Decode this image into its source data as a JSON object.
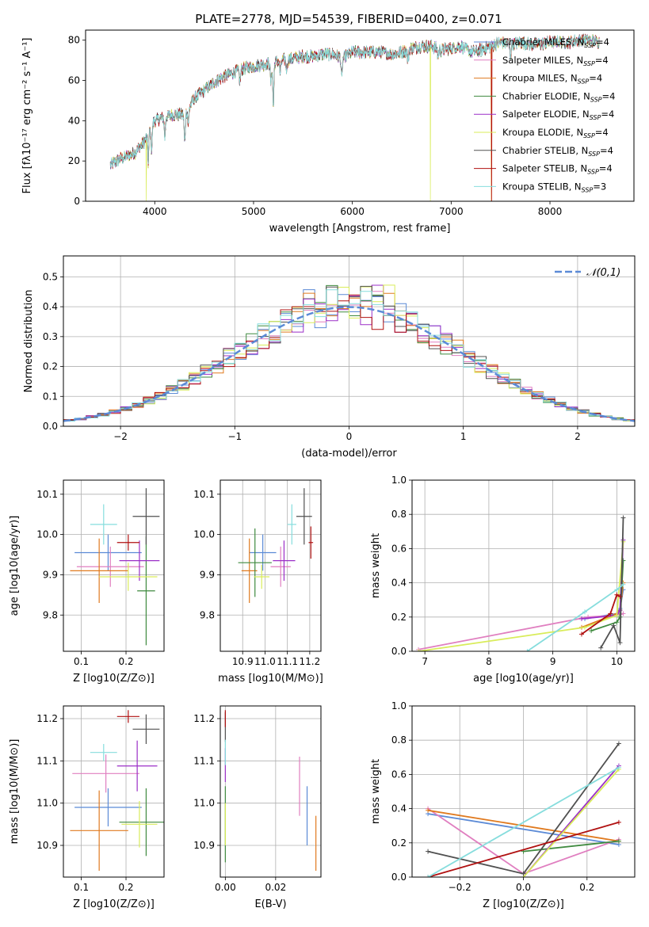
{
  "page_title": "PLATE=2778, MJD=54539, FIBERID=0400, z=0.071",
  "colors": {
    "chabrier_miles": "#5b8ad6",
    "salpeter_miles": "#e07fc0",
    "kroupa_miles": "#e07a1f",
    "chabrier_elodie": "#3f8a3f",
    "salpeter_elodie": "#9b2fc7",
    "kroupa_elodie": "#d9ec5a",
    "chabrier_stelib": "#505050",
    "salpeter_stelib": "#b01010",
    "kroupa_stelib": "#86dddd",
    "normal_curve": "#5b8ad6",
    "grid": "#b0b0b0"
  },
  "legend_spectrum": [
    {
      "label": "Chabrier MILES, N",
      "sub": "SSP",
      "tail": "=4",
      "color_key": "chabrier_miles"
    },
    {
      "label": "Salpeter MILES, N",
      "sub": "SSP",
      "tail": "=4",
      "color_key": "salpeter_miles"
    },
    {
      "label": "Kroupa MILES, N",
      "sub": "SSP",
      "tail": "=4",
      "color_key": "kroupa_miles"
    },
    {
      "label": "Chabrier ELODIE, N",
      "sub": "SSP",
      "tail": "=4",
      "color_key": "chabrier_elodie"
    },
    {
      "label": "Salpeter ELODIE, N",
      "sub": "SSP",
      "tail": "=4",
      "color_key": "salpeter_elodie"
    },
    {
      "label": "Kroupa ELODIE, N",
      "sub": "SSP",
      "tail": "=4",
      "color_key": "kroupa_elodie"
    },
    {
      "label": "Chabrier STELIB, N",
      "sub": "SSP",
      "tail": "=4",
      "color_key": "chabrier_stelib"
    },
    {
      "label": "Salpeter STELIB, N",
      "sub": "SSP",
      "tail": "=4",
      "color_key": "salpeter_stelib"
    },
    {
      "label": "Kroupa STELIB, N",
      "sub": "SSP",
      "tail": "=3",
      "color_key": "kroupa_stelib"
    }
  ],
  "chart_data": [
    {
      "id": "spectrum",
      "type": "line",
      "title": "PLATE=2778, MJD=54539, FIBERID=0400, z=0.071",
      "xlabel": "wavelength [Angstrom, rest frame]",
      "ylabel": "Flux [fλ10⁻¹⁷ erg cm⁻² s⁻¹ A⁻¹]",
      "xlim": [
        3300,
        8850
      ],
      "ylim": [
        0,
        85
      ],
      "xticks": [
        4000,
        5000,
        6000,
        7000,
        8000
      ],
      "yticks": [
        0,
        20,
        40,
        60,
        80
      ],
      "continuum": [
        [
          3550,
          18
        ],
        [
          3650,
          21
        ],
        [
          3800,
          24
        ],
        [
          3900,
          30
        ],
        [
          3950,
          36
        ],
        [
          4000,
          40
        ],
        [
          4100,
          42
        ],
        [
          4200,
          43
        ],
        [
          4300,
          43
        ],
        [
          4400,
          51
        ],
        [
          4500,
          55
        ],
        [
          4600,
          59
        ],
        [
          4700,
          62
        ],
        [
          4800,
          64
        ],
        [
          4900,
          66
        ],
        [
          5000,
          67
        ],
        [
          5100,
          68
        ],
        [
          5200,
          69
        ],
        [
          5300,
          70
        ],
        [
          5400,
          71
        ],
        [
          5500,
          72
        ],
        [
          5600,
          72
        ],
        [
          5700,
          73
        ],
        [
          5800,
          73
        ],
        [
          5900,
          71
        ],
        [
          6000,
          74
        ],
        [
          6100,
          74
        ],
        [
          6200,
          74
        ],
        [
          6300,
          74
        ],
        [
          6400,
          73
        ],
        [
          6500,
          74
        ],
        [
          6600,
          76
        ],
        [
          6700,
          77
        ],
        [
          6800,
          77
        ],
        [
          6900,
          75
        ],
        [
          7000,
          76
        ],
        [
          7100,
          77
        ],
        [
          7200,
          74
        ],
        [
          7300,
          75
        ],
        [
          7400,
          77
        ],
        [
          7500,
          79
        ],
        [
          7600,
          78
        ],
        [
          7700,
          79
        ],
        [
          7800,
          78
        ],
        [
          7900,
          78
        ],
        [
          8000,
          79
        ],
        [
          8100,
          79
        ],
        [
          8200,
          79
        ],
        [
          8300,
          80
        ],
        [
          8400,
          80
        ],
        [
          8500,
          79
        ]
      ],
      "absorption": [
        [
          3934,
          15
        ],
        [
          3968,
          12
        ],
        [
          4102,
          10
        ],
        [
          4304,
          14
        ],
        [
          4340,
          8
        ],
        [
          4861,
          6
        ],
        [
          5175,
          10
        ],
        [
          5200,
          22
        ],
        [
          5270,
          6
        ],
        [
          5335,
          5
        ],
        [
          5893,
          10
        ],
        [
          6563,
          6
        ],
        [
          6867,
          4
        ],
        [
          7600,
          6
        ]
      ],
      "dropouts": [
        [
          3915,
          "kroupa_elodie"
        ],
        [
          6790,
          "kroupa_elodie"
        ],
        [
          7410,
          "salpeter_stelib"
        ],
        [
          7405,
          "kroupa_miles"
        ]
      ]
    },
    {
      "id": "residuals",
      "type": "histogram",
      "xlabel": "(data-model)/error",
      "ylabel": "Normed distribution",
      "xlim": [
        -2.5,
        2.5
      ],
      "ylim": [
        0,
        0.57
      ],
      "xticks": [
        -2,
        -1,
        0,
        1,
        2
      ],
      "yticks": [
        0.0,
        0.1,
        0.2,
        0.3,
        0.4,
        0.5
      ],
      "bin_width": 0.1,
      "legend": "𝒩(0,1)"
    },
    {
      "id": "z_age",
      "type": "scatter",
      "xlabel": "Z [log10(Z/Z⊙)]",
      "ylabel": "age  [log10(age/yr)]",
      "xlim": [
        0.06,
        0.285
      ],
      "ylim": [
        9.71,
        10.135
      ],
      "xticks": [
        0.1,
        0.2
      ],
      "yticks": [
        9.8,
        9.9,
        10.0,
        10.1
      ],
      "points": [
        {
          "s": "chabrier_miles",
          "x": 0.16,
          "xerr": 0.075,
          "y": 9.955,
          "yerr": 0.045
        },
        {
          "s": "salpeter_miles",
          "x": 0.165,
          "xerr": 0.075,
          "y": 9.92,
          "yerr": 0.05
        },
        {
          "s": "kroupa_miles",
          "x": 0.14,
          "xerr": 0.065,
          "y": 9.91,
          "yerr": 0.08
        },
        {
          "s": "chabrier_elodie",
          "x": 0.245,
          "xerr": 0.02,
          "y": 9.86,
          "yerr": 0.135
        },
        {
          "s": "salpeter_elodie",
          "x": 0.23,
          "xerr": 0.045,
          "y": 9.935,
          "yerr": 0.05
        },
        {
          "s": "kroupa_elodie",
          "x": 0.205,
          "xerr": 0.065,
          "y": 9.895,
          "yerr": 0.035
        },
        {
          "s": "chabrier_stelib",
          "x": 0.245,
          "xerr": 0.03,
          "y": 10.045,
          "yerr": 0.07
        },
        {
          "s": "salpeter_stelib",
          "x": 0.205,
          "xerr": 0.025,
          "y": 9.98,
          "yerr": 0.02
        },
        {
          "s": "kroupa_stelib",
          "x": 0.15,
          "xerr": 0.03,
          "y": 10.025,
          "yerr": 0.05
        }
      ]
    },
    {
      "id": "mass_age",
      "type": "scatter",
      "xlabel": "mass [log10(M/M⊙)]",
      "ylabel": "",
      "xlim": [
        10.8,
        11.25
      ],
      "ylim": [
        9.71,
        10.135
      ],
      "xticks": [
        10.9,
        11.0,
        11.1,
        11.2
      ],
      "yticks": [
        9.8,
        9.9,
        10.0,
        10.1
      ],
      "points": [
        {
          "s": "chabrier_miles",
          "x": 10.99,
          "xerr": 0.06,
          "y": 9.955,
          "yerr": 0.045
        },
        {
          "s": "salpeter_miles",
          "x": 11.07,
          "xerr": 0.045,
          "y": 9.92,
          "yerr": 0.05
        },
        {
          "s": "kroupa_miles",
          "x": 10.93,
          "xerr": 0.035,
          "y": 9.91,
          "yerr": 0.08
        },
        {
          "s": "chabrier_elodie",
          "x": 10.955,
          "xerr": 0.075,
          "y": 9.93,
          "yerr": 0.085
        },
        {
          "s": "salpeter_elodie",
          "x": 11.085,
          "xerr": 0.05,
          "y": 9.935,
          "yerr": 0.05
        },
        {
          "s": "kroupa_elodie",
          "x": 10.985,
          "xerr": 0.035,
          "y": 9.895,
          "yerr": 0.03
        },
        {
          "s": "chabrier_stelib",
          "x": 11.175,
          "xerr": 0.035,
          "y": 10.045,
          "yerr": 0.07
        },
        {
          "s": "salpeter_stelib",
          "x": 11.205,
          "xerr": 0.01,
          "y": 9.98,
          "yerr": 0.04
        },
        {
          "s": "kroupa_stelib",
          "x": 11.12,
          "xerr": 0.02,
          "y": 10.025,
          "yerr": 0.05
        }
      ]
    },
    {
      "id": "age_weight",
      "type": "line",
      "xlabel": "age  [log10(age/yr)]",
      "ylabel": "mass weight",
      "xlim": [
        6.8,
        10.28
      ],
      "ylim": [
        0,
        1
      ],
      "xticks": [
        7,
        8,
        9,
        10
      ],
      "yticks": [
        0.0,
        0.2,
        0.4,
        0.6,
        0.8,
        1.0
      ],
      "series": [
        {
          "s": "chabrier_miles",
          "x": [
            9.5,
            10.0,
            10.05,
            10.1
          ],
          "y": [
            0.19,
            0.22,
            0.25,
            0.36
          ]
        },
        {
          "s": "salpeter_miles",
          "x": [
            6.9,
            9.55,
            10.0,
            10.1
          ],
          "y": [
            0.01,
            0.2,
            0.21,
            0.22
          ]
        },
        {
          "s": "kroupa_miles",
          "x": [
            9.45,
            10.0,
            10.05,
            10.1
          ],
          "y": [
            0.14,
            0.22,
            0.24,
            0.4
          ]
        },
        {
          "s": "chabrier_elodie",
          "x": [
            9.6,
            10.0,
            10.05,
            10.1
          ],
          "y": [
            0.12,
            0.17,
            0.2,
            0.53
          ]
        },
        {
          "s": "salpeter_elodie",
          "x": [
            9.45,
            10.0,
            10.05,
            10.1
          ],
          "y": [
            0.19,
            0.21,
            0.24,
            0.65
          ]
        },
        {
          "s": "kroupa_elodie",
          "x": [
            6.9,
            9.5,
            10.0,
            10.1
          ],
          "y": [
            0.0,
            0.14,
            0.21,
            0.64
          ]
        },
        {
          "s": "chabrier_stelib",
          "x": [
            9.75,
            9.95,
            10.05,
            10.1
          ],
          "y": [
            0.02,
            0.15,
            0.05,
            0.78
          ]
        },
        {
          "s": "salpeter_stelib",
          "x": [
            9.45,
            9.9,
            10.0,
            10.05
          ],
          "y": [
            0.1,
            0.22,
            0.33,
            0.32
          ]
        },
        {
          "s": "kroupa_stelib",
          "x": [
            8.6,
            9.5,
            10.0,
            10.1
          ],
          "y": [
            0.0,
            0.23,
            0.36,
            0.39
          ]
        }
      ]
    },
    {
      "id": "z_mass",
      "type": "scatter",
      "xlabel": "Z [log10(Z/Z⊙)]",
      "ylabel": "mass [log10(M/M⊙)]",
      "xlim": [
        0.06,
        0.285
      ],
      "ylim": [
        10.825,
        11.23
      ],
      "xticks": [
        0.1,
        0.2
      ],
      "yticks": [
        10.9,
        11.0,
        11.1,
        11.2
      ],
      "points": [
        {
          "s": "chabrier_miles",
          "x": 0.16,
          "xerr": 0.075,
          "y": 10.99,
          "yerr": 0.045
        },
        {
          "s": "salpeter_miles",
          "x": 0.155,
          "xerr": 0.075,
          "y": 11.07,
          "yerr": 0.045
        },
        {
          "s": "kroupa_miles",
          "x": 0.14,
          "xerr": 0.065,
          "y": 10.935,
          "yerr": 0.095
        },
        {
          "s": "chabrier_elodie",
          "x": 0.245,
          "xerr": 0.06,
          "y": 10.955,
          "yerr": 0.08
        },
        {
          "s": "salpeter_elodie",
          "x": 0.225,
          "xerr": 0.045,
          "y": 11.088,
          "yerr": 0.06
        },
        {
          "s": "kroupa_elodie",
          "x": 0.23,
          "xerr": 0.04,
          "y": 10.95,
          "yerr": 0.055
        },
        {
          "s": "chabrier_stelib",
          "x": 0.245,
          "xerr": 0.03,
          "y": 11.175,
          "yerr": 0.035
        },
        {
          "s": "salpeter_stelib",
          "x": 0.205,
          "xerr": 0.025,
          "y": 11.205,
          "yerr": 0.015
        },
        {
          "s": "kroupa_stelib",
          "x": 0.15,
          "xerr": 0.03,
          "y": 11.12,
          "yerr": 0.02
        }
      ]
    },
    {
      "id": "ebv_mass",
      "type": "scatter",
      "xlabel": "E(B-V)",
      "ylabel": "",
      "xlim": [
        -0.002,
        0.038
      ],
      "ylim": [
        10.825,
        11.23
      ],
      "xticks": [
        0.0,
        0.02
      ],
      "yticks": [
        10.9,
        11.0,
        11.1,
        11.2
      ],
      "points": [
        {
          "s": "chabrier_miles",
          "x": 0.0325,
          "xerr": 0,
          "y": 10.97,
          "yerr": 0.07
        },
        {
          "s": "salpeter_miles",
          "x": 0.0295,
          "xerr": 0,
          "y": 11.04,
          "yerr": 0.07
        },
        {
          "s": "kroupa_miles",
          "x": 0.036,
          "xerr": 0,
          "y": 10.905,
          "yerr": 0.065
        },
        {
          "s": "chabrier_elodie",
          "x": 0.0,
          "xerr": 0,
          "y": 10.95,
          "yerr": 0.09
        },
        {
          "s": "salpeter_elodie",
          "x": 0.0,
          "xerr": 0,
          "y": 11.09,
          "yerr": 0.04
        },
        {
          "s": "kroupa_elodie",
          "x": 0.0,
          "xerr": 0,
          "y": 10.95,
          "yerr": 0.05
        },
        {
          "s": "chabrier_stelib",
          "x": 0.0,
          "xerr": 0,
          "y": 11.18,
          "yerr": 0.035
        },
        {
          "s": "salpeter_stelib",
          "x": 0.0,
          "xerr": 0,
          "y": 11.2,
          "yerr": 0.02
        },
        {
          "s": "kroupa_stelib",
          "x": 0.0,
          "xerr": 0,
          "y": 11.12,
          "yerr": 0.03
        }
      ]
    },
    {
      "id": "z_weight",
      "type": "line",
      "xlabel": "Z [log10(Z/Z⊙)]",
      "ylabel": "mass weight",
      "xlim": [
        -0.35,
        0.35
      ],
      "ylim": [
        0,
        1
      ],
      "xticks": [
        -0.2,
        0.0,
        0.2
      ],
      "yticks": [
        0.0,
        0.2,
        0.4,
        0.6,
        0.8,
        1.0
      ],
      "series": [
        {
          "s": "chabrier_miles",
          "x": [
            -0.3,
            0.3
          ],
          "y": [
            0.37,
            0.19
          ]
        },
        {
          "s": "salpeter_miles",
          "x": [
            -0.3,
            0.0,
            0.3
          ],
          "y": [
            0.4,
            0.02,
            0.22
          ]
        },
        {
          "s": "kroupa_miles",
          "x": [
            -0.3,
            0.3
          ],
          "y": [
            0.39,
            0.21
          ]
        },
        {
          "s": "chabrier_elodie",
          "x": [
            0.0,
            0.3
          ],
          "y": [
            0.15,
            0.21
          ]
        },
        {
          "s": "salpeter_elodie",
          "x": [
            0.0,
            0.3
          ],
          "y": [
            0.0,
            0.65
          ]
        },
        {
          "s": "kroupa_elodie",
          "x": [
            0.0,
            0.3
          ],
          "y": [
            0.0,
            0.63
          ]
        },
        {
          "s": "chabrier_stelib",
          "x": [
            -0.3,
            0.0,
            0.3
          ],
          "y": [
            0.15,
            0.02,
            0.78
          ]
        },
        {
          "s": "salpeter_stelib",
          "x": [
            -0.3,
            0.3
          ],
          "y": [
            0.0,
            0.32
          ]
        },
        {
          "s": "kroupa_stelib",
          "x": [
            -0.3,
            0.3
          ],
          "y": [
            0.0,
            0.64
          ]
        }
      ]
    }
  ]
}
